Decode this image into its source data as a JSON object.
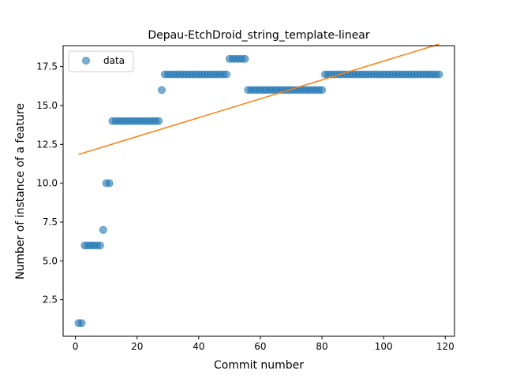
{
  "chart_data": {
    "type": "scatter",
    "title": "Depau-EtchDroid_string_template-linear",
    "xlabel": "Commit number",
    "ylabel": "Number of instance of a feature",
    "xlim": [
      -4,
      123
    ],
    "ylim": [
      0.15,
      18.85
    ],
    "xticks": [
      0,
      20,
      40,
      60,
      80,
      100,
      120
    ],
    "yticks": [
      2.5,
      5.0,
      7.5,
      10.0,
      12.5,
      15.0,
      17.5
    ],
    "xtick_labels": [
      "0",
      "20",
      "40",
      "60",
      "80",
      "100",
      "120"
    ],
    "ytick_labels": [
      "2.5",
      "5.0",
      "7.5",
      "10.0",
      "12.5",
      "15.0",
      "17.5"
    ],
    "legend": {
      "position": "upper-left",
      "entries": [
        "data"
      ]
    },
    "grid": false,
    "colors": {
      "data": "#1f77b4",
      "fit": "#ff7f0e"
    },
    "series": [
      {
        "name": "data",
        "kind": "scatter",
        "x": [
          1,
          2,
          3,
          4,
          5,
          6,
          7,
          8,
          9,
          10,
          11,
          12,
          13,
          14,
          15,
          16,
          17,
          18,
          19,
          20,
          21,
          22,
          23,
          24,
          25,
          26,
          27,
          28,
          29,
          30,
          31,
          32,
          33,
          34,
          35,
          36,
          37,
          38,
          39,
          40,
          41,
          42,
          43,
          44,
          45,
          46,
          47,
          48,
          49,
          50,
          51,
          52,
          53,
          54,
          55,
          56,
          57,
          58,
          59,
          60,
          61,
          62,
          63,
          64,
          65,
          66,
          67,
          68,
          69,
          70,
          71,
          72,
          73,
          74,
          75,
          76,
          77,
          78,
          79,
          80,
          81,
          82,
          83,
          84,
          85,
          86,
          87,
          88,
          89,
          90,
          91,
          92,
          93,
          94,
          95,
          96,
          97,
          98,
          99,
          100,
          101,
          102,
          103,
          104,
          105,
          106,
          107,
          108,
          109,
          110,
          111,
          112,
          113,
          114,
          115,
          116,
          117,
          118
        ],
        "y": [
          1,
          1,
          6,
          6,
          6,
          6,
          6,
          6,
          7,
          10,
          10,
          14,
          14,
          14,
          14,
          14,
          14,
          14,
          14,
          14,
          14,
          14,
          14,
          14,
          14,
          14,
          14,
          16,
          17,
          17,
          17,
          17,
          17,
          17,
          17,
          17,
          17,
          17,
          17,
          17,
          17,
          17,
          17,
          17,
          17,
          17,
          17,
          17,
          17,
          18,
          18,
          18,
          18,
          18,
          18,
          16,
          16,
          16,
          16,
          16,
          16,
          16,
          16,
          16,
          16,
          16,
          16,
          16,
          16,
          16,
          16,
          16,
          16,
          16,
          16,
          16,
          16,
          16,
          16,
          16,
          17,
          17,
          17,
          17,
          17,
          17,
          17,
          17,
          17,
          17,
          17,
          17,
          17,
          17,
          17,
          17,
          17,
          17,
          17,
          17,
          17,
          17,
          17,
          17,
          17,
          17,
          17,
          17,
          17,
          17,
          17,
          17,
          17,
          17,
          17,
          17,
          17,
          17
        ]
      },
      {
        "kind": "line",
        "x": [
          1,
          118
        ],
        "y": [
          11.85,
          18.95
        ]
      }
    ]
  }
}
